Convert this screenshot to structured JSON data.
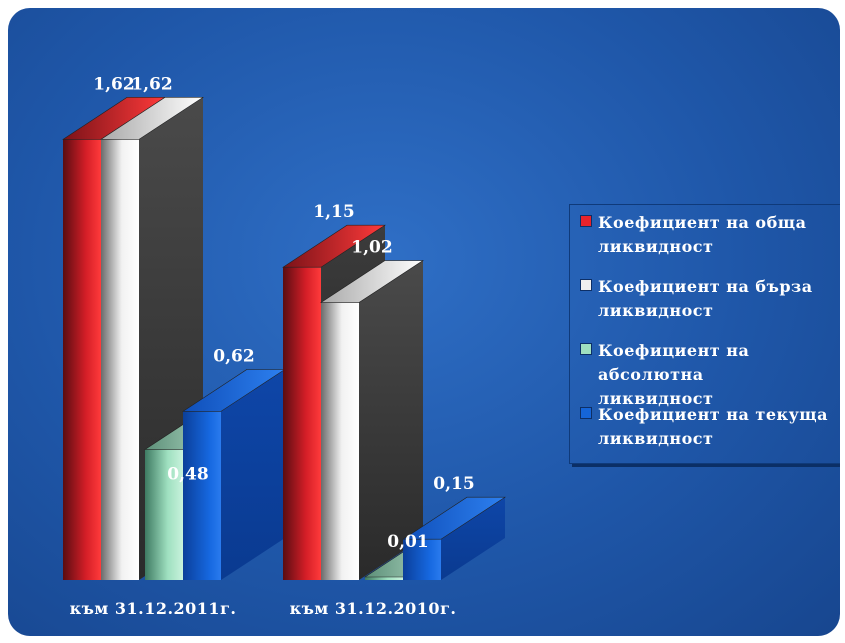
{
  "chart_data": {
    "type": "bar",
    "categories": [
      "към 31.12.2011г.",
      "към 31.12.2010г."
    ],
    "series": [
      {
        "name": "Коефициент на обща\nликвидност",
        "values": [
          1.62,
          1.15
        ],
        "labels": [
          "1,62",
          "1,15"
        ],
        "color": "#e8232b"
      },
      {
        "name": "Коефициент на бърза\nликвидност",
        "values": [
          1.62,
          1.02
        ],
        "labels": [
          "1,62",
          "1,02"
        ],
        "color": "#ffffff"
      },
      {
        "name": "Коефициент на абсолютна\nликвидност",
        "values": [
          0.48,
          0.01
        ],
        "labels": [
          "0,48",
          "0,01"
        ],
        "color": "#9fe0c0"
      },
      {
        "name": "Коефициент на текуща\nликвидност",
        "values": [
          0.62,
          0.15
        ],
        "labels": [
          "0,62",
          "0,15"
        ],
        "color": "#1565d8"
      }
    ],
    "ylim": [
      0,
      1.7
    ],
    "grid": false,
    "legend": "right",
    "style": "3d-column"
  }
}
